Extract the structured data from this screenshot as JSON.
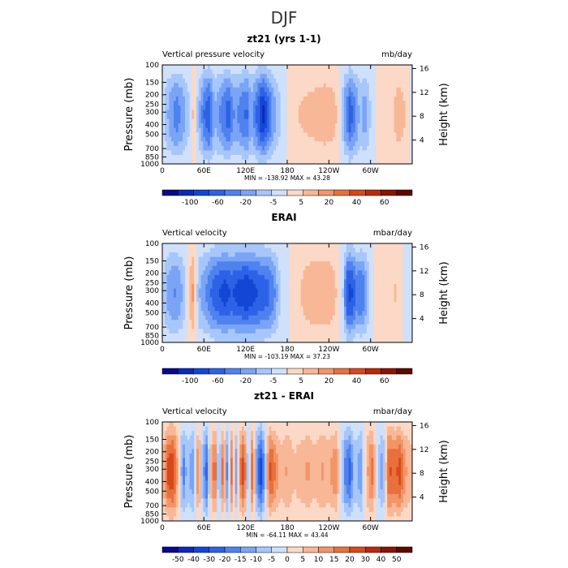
{
  "suptitle": "DJF",
  "colors": {
    "axis": "#000000",
    "background": "#ffffff"
  },
  "chart_data": [
    {
      "type": "heatmap",
      "title": "zt21 (yrs 1-1)",
      "left_label": "Vertical pressure velocity",
      "right_label": "mb/day",
      "ylabel_left": "Pressure (mb)",
      "ylabel_right": "Height (km)",
      "pressure_ticks": [
        "100",
        "150",
        "200",
        "250",
        "300",
        "400",
        "500",
        "700",
        "850",
        "1000"
      ],
      "height_ticks": [
        "16",
        "12",
        "8",
        "4"
      ],
      "lon_ticks": [
        "0",
        "60E",
        "120E",
        "180",
        "120W",
        "60W"
      ],
      "stats": "MIN = -138.92   MAX =  43.28",
      "min": -138.92,
      "max": 43.28,
      "colorbar_labels": [
        "-100",
        "-60",
        "-20",
        "-5",
        "5",
        "20",
        "40",
        "60"
      ],
      "colorbar_colors": [
        "#08088a",
        "#0a2ab8",
        "#1446d6",
        "#2e62e6",
        "#4f82ef",
        "#7aa4f6",
        "#a7c6fa",
        "#cfe0fb",
        "#fbd9c6",
        "#f8b796",
        "#f29567",
        "#e8703c",
        "#d8481c",
        "#b72a0c",
        "#8a1503",
        "#5e0800"
      ],
      "lon_profile": [
        [
          0,
          -10
        ],
        [
          10,
          -35
        ],
        [
          20,
          -55
        ],
        [
          30,
          -40
        ],
        [
          38,
          -20
        ],
        [
          45,
          20
        ],
        [
          50,
          -15
        ],
        [
          60,
          -60
        ],
        [
          68,
          -75
        ],
        [
          75,
          -30
        ],
        [
          85,
          -50
        ],
        [
          95,
          -70
        ],
        [
          105,
          -40
        ],
        [
          115,
          -55
        ],
        [
          122,
          -65
        ],
        [
          128,
          -35
        ],
        [
          135,
          -60
        ],
        [
          145,
          -95
        ],
        [
          152,
          -70
        ],
        [
          160,
          -40
        ],
        [
          168,
          -20
        ],
        [
          175,
          -5
        ],
        [
          185,
          5
        ],
        [
          195,
          15
        ],
        [
          205,
          18
        ],
        [
          215,
          20
        ],
        [
          225,
          22
        ],
        [
          235,
          25
        ],
        [
          245,
          22
        ],
        [
          255,
          10
        ],
        [
          263,
          -40
        ],
        [
          270,
          -70
        ],
        [
          278,
          -50
        ],
        [
          285,
          -25
        ],
        [
          292,
          -40
        ],
        [
          300,
          -15
        ],
        [
          310,
          5
        ],
        [
          320,
          15
        ],
        [
          330,
          10
        ],
        [
          340,
          25
        ],
        [
          350,
          15
        ],
        [
          360,
          -10
        ]
      ]
    },
    {
      "type": "heatmap",
      "title": "ERAI",
      "left_label": "Vertical velocity",
      "right_label": "mbar/day",
      "ylabel_left": "Pressure (mb)",
      "ylabel_right": "Height (km)",
      "pressure_ticks": [
        "100",
        "150",
        "200",
        "250",
        "300",
        "400",
        "500",
        "700",
        "850",
        "1000"
      ],
      "height_ticks": [
        "16",
        "12",
        "8",
        "4"
      ],
      "lon_ticks": [
        "0",
        "60E",
        "120E",
        "180",
        "120W",
        "60W"
      ],
      "stats": "MIN = -103.19   MAX =  37.23",
      "min": -103.19,
      "max": 37.23,
      "colorbar_labels": [
        "-100",
        "-60",
        "-20",
        "-5",
        "5",
        "20",
        "40",
        "60"
      ],
      "colorbar_colors": [
        "#08088a",
        "#0a2ab8",
        "#1446d6",
        "#2e62e6",
        "#4f82ef",
        "#7aa4f6",
        "#a7c6fa",
        "#cfe0fb",
        "#fbd9c6",
        "#f8b796",
        "#f29567",
        "#e8703c",
        "#d8481c",
        "#b72a0c",
        "#8a1503",
        "#5e0800"
      ],
      "lon_profile": [
        [
          0,
          -10
        ],
        [
          10,
          -30
        ],
        [
          20,
          -35
        ],
        [
          30,
          -20
        ],
        [
          38,
          10
        ],
        [
          45,
          25
        ],
        [
          52,
          -20
        ],
        [
          60,
          -30
        ],
        [
          70,
          -45
        ],
        [
          80,
          -55
        ],
        [
          90,
          -60
        ],
        [
          100,
          -55
        ],
        [
          110,
          -60
        ],
        [
          120,
          -65
        ],
        [
          130,
          -60
        ],
        [
          140,
          -55
        ],
        [
          150,
          -50
        ],
        [
          160,
          -40
        ],
        [
          168,
          -15
        ],
        [
          178,
          -3
        ],
        [
          188,
          5
        ],
        [
          200,
          12
        ],
        [
          212,
          18
        ],
        [
          222,
          20
        ],
        [
          232,
          20
        ],
        [
          242,
          18
        ],
        [
          252,
          10
        ],
        [
          260,
          -10
        ],
        [
          266,
          -55
        ],
        [
          272,
          -60
        ],
        [
          280,
          -40
        ],
        [
          288,
          -45
        ],
        [
          296,
          -20
        ],
        [
          305,
          5
        ],
        [
          315,
          10
        ],
        [
          325,
          8
        ],
        [
          335,
          12
        ],
        [
          345,
          5
        ],
        [
          352,
          -5
        ],
        [
          360,
          -10
        ]
      ]
    },
    {
      "type": "heatmap",
      "title": "zt21 - ERAI",
      "left_label": "Vertical velocity",
      "right_label": "mbar/day",
      "ylabel_left": "Pressure (mb)",
      "ylabel_right": "Height (km)",
      "pressure_ticks": [
        "100",
        "150",
        "200",
        "250",
        "300",
        "400",
        "500",
        "700",
        "850",
        "1000"
      ],
      "height_ticks": [
        "16",
        "12",
        "8",
        "4"
      ],
      "lon_ticks": [
        "0",
        "60E",
        "120E",
        "180",
        "120W",
        "60W"
      ],
      "stats": "MIN = -64.11   MAX =  43.44",
      "min": -64.11,
      "max": 43.44,
      "colorbar_labels": [
        "-50",
        "-40",
        "-30",
        "-20",
        "-15",
        "-10",
        "-5",
        "0",
        "5",
        "10",
        "15",
        "20",
        "30",
        "40",
        "50"
      ],
      "colorbar_colors": [
        "#08088a",
        "#0a2ab8",
        "#1446d6",
        "#2e62e6",
        "#4f82ef",
        "#7aa4f6",
        "#a7c6fa",
        "#cfe0fb",
        "#fbd9c6",
        "#f8b796",
        "#f29567",
        "#e8703c",
        "#d8481c",
        "#b72a0c",
        "#8a1503",
        "#5e0800"
      ],
      "lon_profile": [
        [
          0,
          5
        ],
        [
          8,
          30
        ],
        [
          16,
          35
        ],
        [
          24,
          5
        ],
        [
          30,
          -25
        ],
        [
          36,
          -10
        ],
        [
          44,
          -20
        ],
        [
          52,
          25
        ],
        [
          58,
          -15
        ],
        [
          64,
          -30
        ],
        [
          70,
          10
        ],
        [
          76,
          30
        ],
        [
          82,
          -25
        ],
        [
          88,
          35
        ],
        [
          94,
          -30
        ],
        [
          100,
          25
        ],
        [
          106,
          -20
        ],
        [
          112,
          20
        ],
        [
          118,
          35
        ],
        [
          124,
          -20
        ],
        [
          130,
          30
        ],
        [
          136,
          -20
        ],
        [
          142,
          -40
        ],
        [
          148,
          -15
        ],
        [
          154,
          30
        ],
        [
          160,
          25
        ],
        [
          170,
          10
        ],
        [
          180,
          15
        ],
        [
          190,
          8
        ],
        [
          200,
          12
        ],
        [
          210,
          15
        ],
        [
          220,
          10
        ],
        [
          230,
          15
        ],
        [
          240,
          12
        ],
        [
          250,
          20
        ],
        [
          258,
          -5
        ],
        [
          264,
          -25
        ],
        [
          270,
          -30
        ],
        [
          278,
          -10
        ],
        [
          286,
          -20
        ],
        [
          294,
          10
        ],
        [
          302,
          25
        ],
        [
          310,
          -5
        ],
        [
          318,
          -20
        ],
        [
          326,
          30
        ],
        [
          334,
          25
        ],
        [
          342,
          30
        ],
        [
          350,
          15
        ],
        [
          360,
          10
        ]
      ]
    }
  ]
}
